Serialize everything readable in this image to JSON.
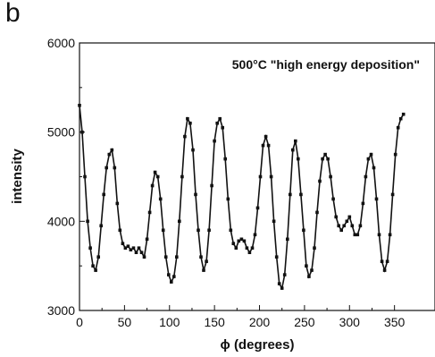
{
  "panel_label": "b",
  "chart_data": {
    "type": "line",
    "title": "",
    "annotation": "500°C \"high energy deposition\"",
    "xlabel": "ϕ (degrees)",
    "ylabel": "intensity",
    "xlim": [
      0,
      360
    ],
    "ylim": [
      3000,
      6000
    ],
    "x_ticks": [
      0,
      50,
      100,
      150,
      200,
      250,
      300,
      350
    ],
    "y_ticks": [
      3000,
      4000,
      5000,
      6000
    ],
    "grid": false,
    "legend": "none",
    "marker": "square",
    "color": "#111111",
    "series": [
      {
        "x": [
          0,
          3,
          6,
          9,
          12,
          15,
          18,
          21,
          24,
          27,
          30,
          33,
          36,
          39,
          42,
          45,
          48,
          51,
          54,
          57,
          60,
          63,
          66,
          69,
          72,
          75,
          78,
          81,
          84,
          87,
          90,
          93,
          96,
          99,
          102,
          105,
          108,
          111,
          114,
          117,
          120,
          123,
          126,
          129,
          132,
          135,
          138,
          141,
          144,
          147,
          150,
          153,
          156,
          159,
          162,
          165,
          168,
          171,
          174,
          177,
          180,
          183,
          186,
          189,
          192,
          195,
          198,
          201,
          204,
          207,
          210,
          213,
          216,
          219,
          222,
          225,
          228,
          231,
          234,
          237,
          240,
          243,
          246,
          249,
          252,
          255,
          258,
          261,
          264,
          267,
          270,
          273,
          276,
          279,
          282,
          285,
          288,
          291,
          294,
          297,
          300,
          303,
          306,
          309,
          312,
          315,
          318,
          321,
          324,
          327,
          330,
          333,
          336,
          339,
          342,
          345,
          348,
          351,
          354,
          357,
          360
        ],
        "values": [
          5300,
          5000,
          4500,
          4000,
          3700,
          3500,
          3450,
          3600,
          3950,
          4300,
          4600,
          4750,
          4800,
          4600,
          4200,
          3900,
          3750,
          3700,
          3720,
          3680,
          3700,
          3650,
          3700,
          3650,
          3600,
          3800,
          4100,
          4400,
          4550,
          4500,
          4250,
          3900,
          3600,
          3400,
          3320,
          3380,
          3600,
          4000,
          4500,
          4950,
          5150,
          5100,
          4800,
          4300,
          3900,
          3600,
          3450,
          3550,
          3900,
          4400,
          4900,
          5100,
          5150,
          5050,
          4700,
          4250,
          3900,
          3750,
          3700,
          3780,
          3800,
          3780,
          3700,
          3650,
          3700,
          3850,
          4150,
          4500,
          4850,
          4950,
          4850,
          4500,
          4000,
          3600,
          3300,
          3250,
          3400,
          3800,
          4300,
          4800,
          4900,
          4700,
          4300,
          3900,
          3500,
          3380,
          3450,
          3700,
          4100,
          4450,
          4700,
          4750,
          4700,
          4500,
          4250,
          4050,
          3950,
          3900,
          3950,
          4000,
          4050,
          3950,
          3850,
          3850,
          3950,
          4200,
          4500,
          4700,
          4750,
          4600,
          4250,
          3850,
          3550,
          3450,
          3550,
          3850,
          4300,
          4750,
          5050,
          5150,
          5200
        ]
      }
    ]
  }
}
